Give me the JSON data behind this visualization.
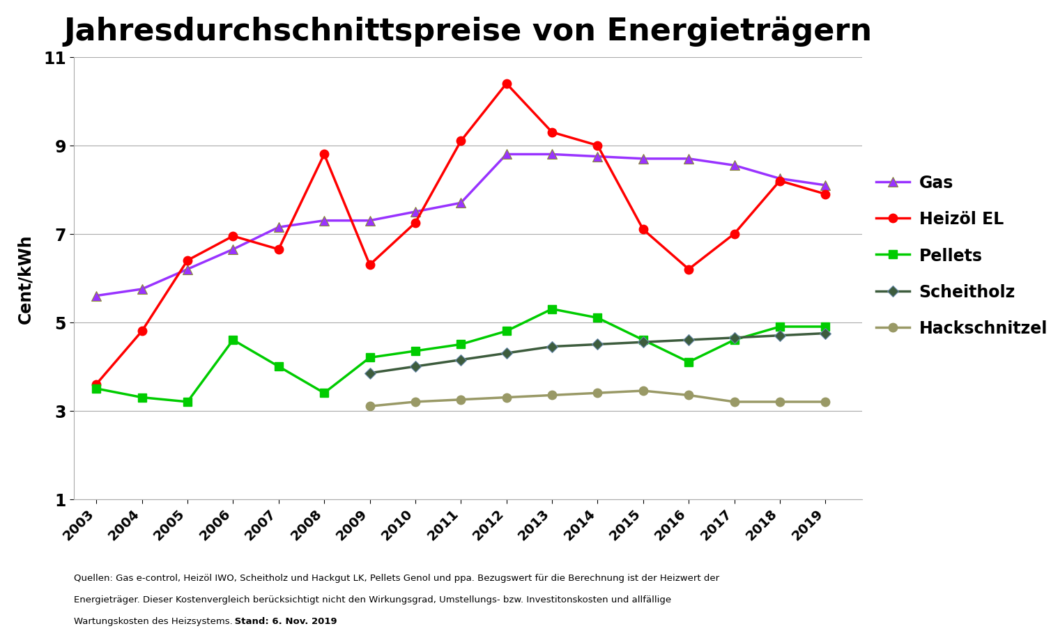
{
  "title": "Jahresdurchschnittspreise von Energieträgern",
  "ylabel": "Cent/kWh",
  "years": [
    2003,
    2004,
    2005,
    2006,
    2007,
    2008,
    2009,
    2010,
    2011,
    2012,
    2013,
    2014,
    2015,
    2016,
    2017,
    2018,
    2019
  ],
  "gas": [
    5.6,
    5.75,
    6.2,
    6.65,
    7.15,
    7.3,
    7.3,
    7.5,
    7.7,
    8.8,
    8.8,
    8.75,
    8.7,
    8.7,
    8.55,
    8.25,
    8.1
  ],
  "heizoel": [
    3.6,
    4.8,
    6.4,
    6.95,
    6.65,
    8.8,
    6.3,
    7.25,
    9.1,
    10.4,
    9.3,
    9.0,
    7.1,
    6.2,
    7.0,
    8.2,
    7.9
  ],
  "pellets": [
    3.5,
    3.3,
    3.2,
    4.6,
    4.0,
    3.4,
    4.2,
    4.35,
    4.5,
    4.8,
    5.3,
    5.1,
    4.6,
    4.1,
    4.6,
    4.9,
    4.9
  ],
  "scheitholz": [
    null,
    null,
    null,
    null,
    null,
    null,
    3.85,
    4.0,
    4.15,
    4.3,
    4.45,
    4.5,
    4.55,
    4.6,
    4.65,
    4.7,
    4.75
  ],
  "hackschnitzel": [
    null,
    null,
    null,
    null,
    null,
    null,
    3.1,
    3.2,
    3.25,
    3.3,
    3.35,
    3.4,
    3.45,
    3.35,
    3.2,
    3.2,
    3.2
  ],
  "gas_color": "#9933ff",
  "heizoel_color": "#ff0000",
  "pellets_color": "#00cc00",
  "scheitholz_color": "#3d5c3d",
  "hackschnitzel_color": "#999966",
  "ylim": [
    1,
    11
  ],
  "yticks": [
    1,
    3,
    5,
    7,
    9,
    11
  ],
  "footnote1": "Quellen: Gas e-control, Heizöl IWO, Scheitholz und Hackgut LK, Pellets Genol und ppa. Bezugswert für die Berechnung ist der Heizwert der",
  "footnote2": "Energieträger. Dieser Kostenvergleich berücksichtigt nicht den Wirkungsgrad, Umstellungs- bzw. Investitonskosten und allfällige",
  "footnote3_normal": "Wartungskosten des Heizsystems.",
  "footnote3_bold": " Stand: 6. Nov. 2019"
}
